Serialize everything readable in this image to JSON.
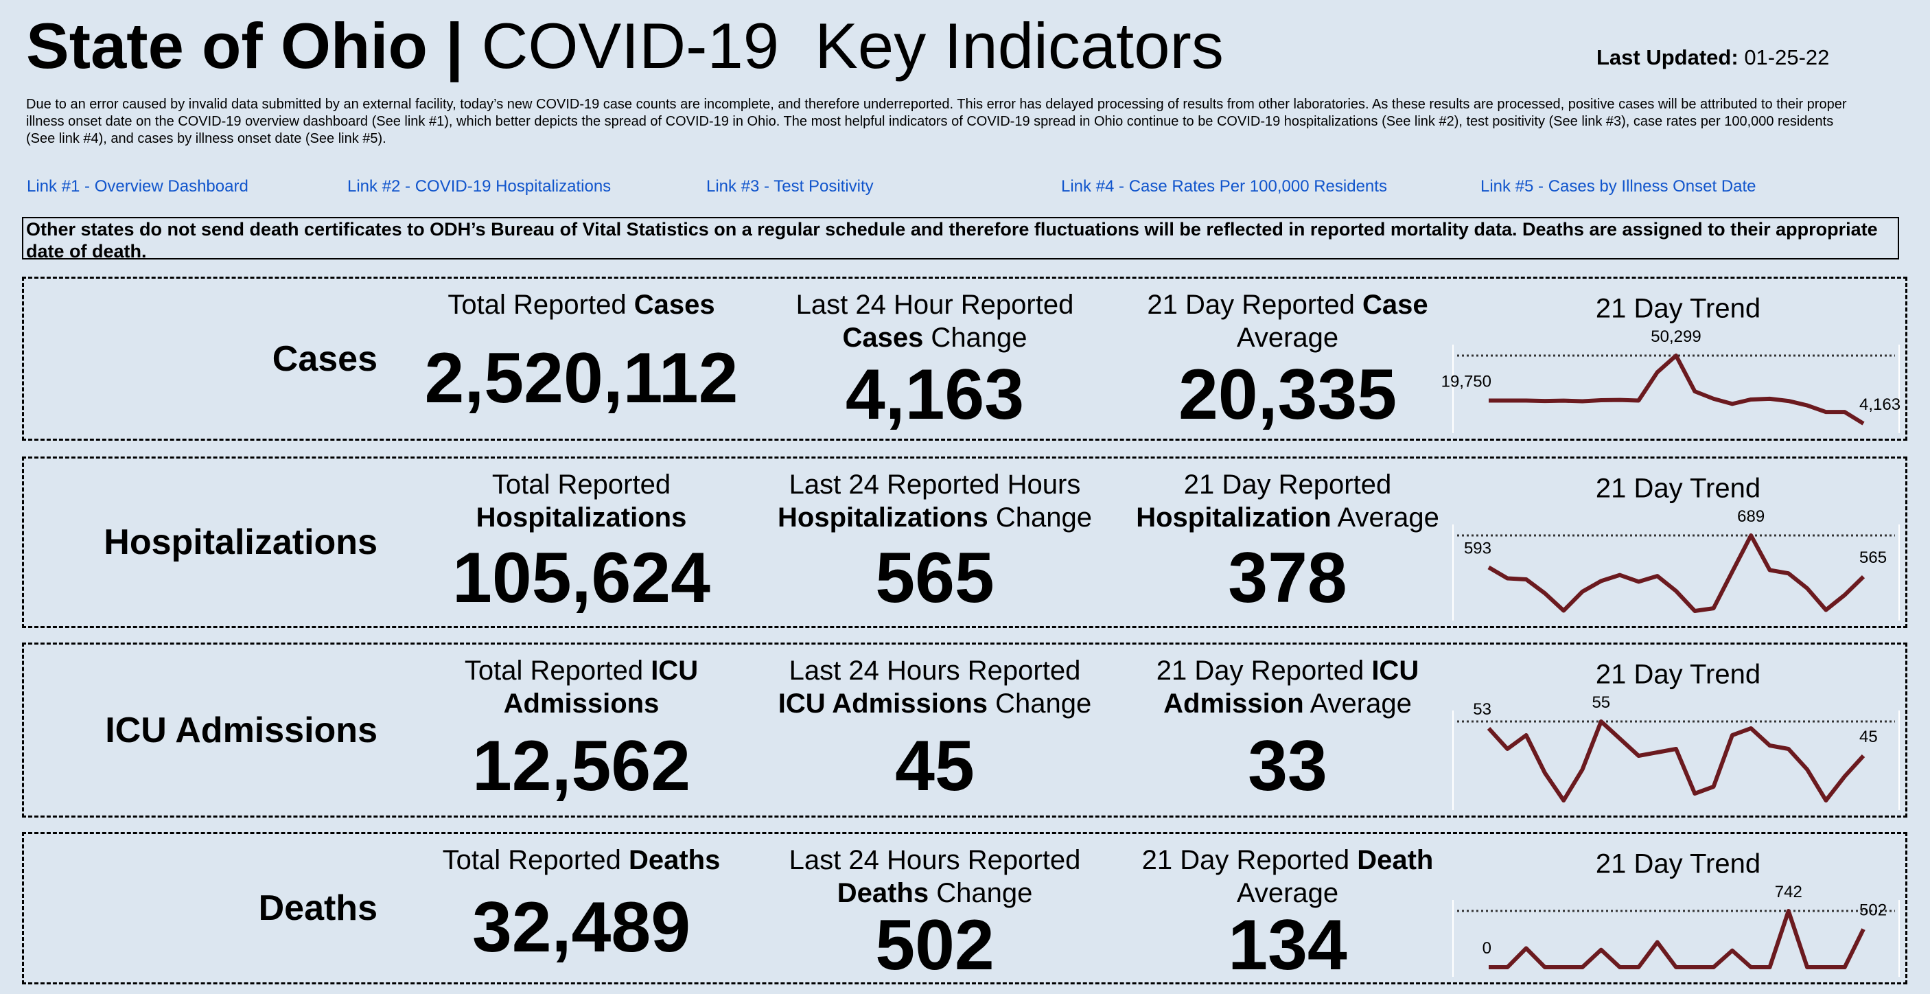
{
  "header": {
    "title_bold": "State of Ohio |",
    "title": "COVID-19  Key Indicators",
    "updated_label": "Last Updated:",
    "updated_value": "01-25-22"
  },
  "notice": "Due to an error caused by invalid data submitted by an external facility, today’s new COVID-19 case counts are incomplete, and therefore underreported. This error has delayed processing of results from other laboratories. As these results are processed, positive cases will be attributed to their proper illness onset date on the COVID-19 overview dashboard (See link #1), which better depicts the spread of COVID-19 in Ohio. The most helpful indicators of COVID-19 spread in Ohio continue to be COVID-19 hospitalizations (See link #2), test positivity (See link #3), case rates per 100,000 residents (See link #4), and cases by illness onset date (See link #5).",
  "links": [
    "Link #1 - Overview Dashboard",
    "Link #2 - COVID-19 Hospitalizations",
    "Link #3 - Test Positivity",
    "Link #4 - Case Rates Per 100,000 Residents",
    "Link #5 - Cases by Illness Onset Date"
  ],
  "death_note": "Other states do not send death certificates to ODH’s Bureau of Vital Statistics on a regular schedule and therefore fluctuations will be reflected in reported mortality data. Deaths are assigned to their appropriate date of death.",
  "rows": [
    {
      "name": "Cases",
      "metrics": [
        {
          "label": [
            {
              "text": "Total Reported ",
              "bold": false
            },
            {
              "text": "Cases",
              "bold": true
            }
          ],
          "value": "2,520,112"
        },
        {
          "label": [
            {
              "text": "Last 24 Hour Reported ",
              "bold": false
            },
            {
              "text": "Cases",
              "bold": true
            },
            {
              "text": " Change",
              "bold": false
            }
          ],
          "value": "4,163"
        },
        {
          "label": [
            {
              "text": "21 Day Reported ",
              "bold": false
            },
            {
              "text": "Case",
              "bold": true
            },
            {
              "text": " Average",
              "bold": false
            }
          ],
          "value": "20,335"
        }
      ],
      "trend": {
        "type": "line",
        "title": "21 Day Trend",
        "color": "#6b1a1f",
        "max_line": true,
        "values": [
          19750,
          19750,
          19800,
          19500,
          19700,
          19300,
          20000,
          20200,
          19800,
          39000,
          50299,
          26000,
          21000,
          17500,
          20500,
          21000,
          19500,
          16500,
          12000,
          12000,
          4163
        ],
        "value_labels": [
          "19,750",
          null,
          null,
          null,
          null,
          null,
          null,
          null,
          null,
          null,
          "50,299",
          null,
          null,
          null,
          null,
          null,
          null,
          null,
          null,
          null,
          "4,163"
        ]
      }
    },
    {
      "name": "Hospitalizations",
      "metrics": [
        {
          "label": [
            {
              "text": "Total Reported ",
              "bold": false
            },
            {
              "text": "Hospitalizations",
              "bold": true
            }
          ],
          "value": "105,624"
        },
        {
          "label": [
            {
              "text": "Last 24 Reported Hours ",
              "bold": false
            },
            {
              "text": "Hospitalizations",
              "bold": true
            },
            {
              "text": " Change",
              "bold": false
            }
          ],
          "value": "565"
        },
        {
          "label": [
            {
              "text": "21 Day Reported ",
              "bold": false
            },
            {
              "text": "Hospitalization",
              "bold": true
            },
            {
              "text": " Average",
              "bold": false
            }
          ],
          "value": "378"
        }
      ],
      "trend": {
        "type": "line",
        "title": "21 Day Trend",
        "color": "#6b1a1f",
        "max_line": true,
        "values": [
          593,
          560,
          557,
          515,
          463,
          520,
          552,
          570,
          550,
          567,
          522,
          462,
          470,
          580,
          689,
          585,
          575,
          530,
          465,
          510,
          565
        ],
        "value_labels": [
          "593",
          null,
          null,
          null,
          null,
          null,
          null,
          null,
          null,
          null,
          null,
          null,
          null,
          null,
          "689",
          null,
          null,
          null,
          null,
          null,
          "565"
        ]
      }
    },
    {
      "name": "ICU Admissions",
      "metrics": [
        {
          "label": [
            {
              "text": "Total Reported ",
              "bold": false
            },
            {
              "text": "ICU Admissions",
              "bold": true
            }
          ],
          "value": "12,562"
        },
        {
          "label": [
            {
              "text": "Last 24 Hours Reported ",
              "bold": false
            },
            {
              "text": "ICU Admissions",
              "bold": true
            },
            {
              "text": " Change",
              "bold": false
            }
          ],
          "value": "45"
        },
        {
          "label": [
            {
              "text": "21 Day Reported ",
              "bold": false
            },
            {
              "text": "ICU Admission",
              "bold": true
            },
            {
              "text": " Average",
              "bold": false
            }
          ],
          "value": "33"
        }
      ],
      "trend": {
        "type": "line",
        "title": "21 Day Trend",
        "color": "#6b1a1f",
        "max_line": true,
        "values": [
          53,
          47,
          51,
          40,
          32,
          41,
          55,
          50,
          45,
          46,
          47,
          34,
          36,
          51,
          53,
          48,
          47,
          41,
          32,
          39,
          45
        ],
        "value_labels": [
          "53",
          null,
          null,
          null,
          null,
          null,
          "55",
          null,
          null,
          null,
          null,
          null,
          null,
          null,
          null,
          null,
          null,
          null,
          null,
          null,
          "45"
        ]
      }
    },
    {
      "name": "Deaths",
      "metrics": [
        {
          "label": [
            {
              "text": "Total Reported ",
              "bold": false
            },
            {
              "text": "Deaths",
              "bold": true
            }
          ],
          "value": "32,489"
        },
        {
          "label": [
            {
              "text": "Last 24 Hours Reported ",
              "bold": false
            },
            {
              "text": "Deaths",
              "bold": true
            },
            {
              "text": " Change",
              "bold": false
            }
          ],
          "value": "502"
        },
        {
          "label": [
            {
              "text": "21 Day Reported ",
              "bold": false
            },
            {
              "text": "Death",
              "bold": true
            },
            {
              "text": " Average",
              "bold": false
            }
          ],
          "value": "134"
        }
      ],
      "trend": {
        "type": "line",
        "title": "21 Day Trend",
        "color": "#6b1a1f",
        "max_line": true,
        "values": [
          0,
          0,
          250,
          0,
          0,
          0,
          230,
          0,
          0,
          330,
          0,
          0,
          0,
          220,
          0,
          0,
          742,
          0,
          0,
          0,
          502
        ],
        "value_labels": [
          "0",
          null,
          null,
          null,
          null,
          null,
          null,
          null,
          null,
          null,
          null,
          null,
          null,
          null,
          null,
          null,
          "742",
          null,
          null,
          null,
          "502"
        ]
      }
    }
  ]
}
